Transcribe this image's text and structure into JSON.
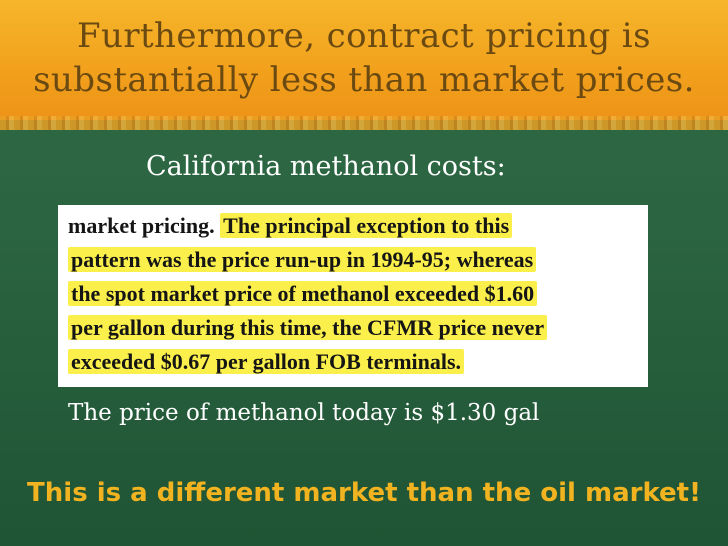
{
  "slide": {
    "title_line1": "Furthermore, contract pricing is",
    "title_line2": "substantially less than market prices.",
    "subtitle": "California methanol costs:",
    "clipping": {
      "line1_plain": "market pricing.",
      "line1_highlight": "The principal exception to this",
      "line2": "pattern was the price run-up in 1994-95; whereas",
      "line3": "the spot market price of methanol exceeded $1.60",
      "line4": "per gallon during this time, the CFMR price never",
      "line5": "exceeded $0.67 per gallon FOB terminals."
    },
    "note": "The price of methanol today is $1.30 gal",
    "footer": "This is a different market than the oil market!"
  }
}
